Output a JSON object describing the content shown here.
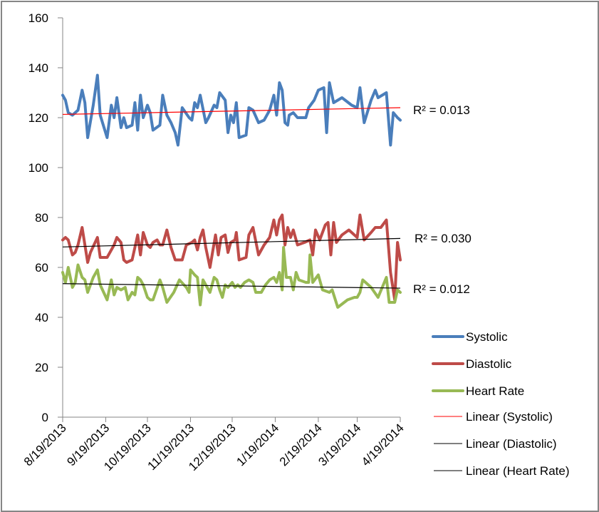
{
  "chart_data": {
    "type": "line",
    "title": "",
    "xlabel": "",
    "ylabel": "",
    "ylim": [
      0,
      160
    ],
    "yticks": [
      "0",
      "20",
      "40",
      "60",
      "80",
      "100",
      "120",
      "140",
      "160"
    ],
    "ytick_values": [
      0,
      20,
      40,
      60,
      80,
      100,
      120,
      140,
      160
    ],
    "xlim_days": [
      0,
      243
    ],
    "xticks": [
      "8/19/2013",
      "9/19/2013",
      "10/19/2013",
      "11/19/2013",
      "12/19/2013",
      "1/19/2014",
      "2/19/2014",
      "3/19/2014",
      "4/19/2014"
    ],
    "xtick_days": [
      0,
      31,
      61,
      92,
      122,
      153,
      184,
      212,
      243
    ],
    "x_unit": "days since 8/19/2013",
    "grid": false,
    "legend_position": "right",
    "series": [
      {
        "name": "Systolic",
        "color": "#4a7ebb",
        "points": [
          [
            0,
            129
          ],
          [
            2,
            127
          ],
          [
            4,
            122
          ],
          [
            7,
            121
          ],
          [
            11,
            123
          ],
          [
            14,
            131
          ],
          [
            16,
            126
          ],
          [
            18,
            112
          ],
          [
            22,
            125
          ],
          [
            25,
            137
          ],
          [
            27,
            121
          ],
          [
            32,
            112
          ],
          [
            35,
            125
          ],
          [
            37,
            120
          ],
          [
            39,
            128
          ],
          [
            42,
            116
          ],
          [
            44,
            120
          ],
          [
            46,
            116
          ],
          [
            50,
            117
          ],
          [
            52,
            126
          ],
          [
            54,
            115
          ],
          [
            56,
            129
          ],
          [
            58,
            120
          ],
          [
            61,
            125
          ],
          [
            63,
            122
          ],
          [
            65,
            115
          ],
          [
            70,
            117
          ],
          [
            72,
            129
          ],
          [
            75,
            121
          ],
          [
            78,
            118
          ],
          [
            81,
            114
          ],
          [
            83,
            109
          ],
          [
            86,
            124
          ],
          [
            91,
            120
          ],
          [
            93,
            119
          ],
          [
            95,
            126
          ],
          [
            97,
            124
          ],
          [
            99,
            129
          ],
          [
            103,
            118
          ],
          [
            105,
            120
          ],
          [
            109,
            125
          ],
          [
            111,
            124
          ],
          [
            113,
            130
          ],
          [
            117,
            127
          ],
          [
            119,
            114
          ],
          [
            121,
            121
          ],
          [
            123,
            118
          ],
          [
            125,
            126
          ],
          [
            127,
            112
          ],
          [
            132,
            113
          ],
          [
            134,
            124
          ],
          [
            137,
            123
          ],
          [
            141,
            118
          ],
          [
            145,
            119
          ],
          [
            149,
            123
          ],
          [
            152,
            129
          ],
          [
            154,
            121
          ],
          [
            156,
            134
          ],
          [
            158,
            131
          ],
          [
            160,
            118
          ],
          [
            162,
            117
          ],
          [
            163,
            121
          ],
          [
            166,
            122
          ],
          [
            169,
            120
          ],
          [
            175,
            120
          ],
          [
            177,
            124
          ],
          [
            181,
            127
          ],
          [
            184,
            131
          ],
          [
            188,
            132
          ],
          [
            190,
            114
          ],
          [
            192,
            134
          ],
          [
            195,
            126
          ],
          [
            201,
            128
          ],
          [
            208,
            125
          ],
          [
            212,
            124
          ],
          [
            214,
            132
          ],
          [
            217,
            118
          ],
          [
            222,
            127
          ],
          [
            225,
            131
          ],
          [
            227,
            128
          ],
          [
            233,
            130
          ],
          [
            236,
            109
          ],
          [
            238,
            122
          ],
          [
            241,
            120
          ],
          [
            243,
            119
          ]
        ]
      },
      {
        "name": "Diastolic",
        "color": "#be4b48",
        "points": [
          [
            0,
            71
          ],
          [
            2,
            72
          ],
          [
            4,
            71
          ],
          [
            7,
            65
          ],
          [
            9,
            66
          ],
          [
            11,
            69
          ],
          [
            14,
            76
          ],
          [
            18,
            62
          ],
          [
            20,
            66
          ],
          [
            25,
            72
          ],
          [
            27,
            64
          ],
          [
            32,
            64
          ],
          [
            35,
            67
          ],
          [
            37,
            69
          ],
          [
            39,
            72
          ],
          [
            42,
            70
          ],
          [
            44,
            63
          ],
          [
            46,
            62
          ],
          [
            50,
            63
          ],
          [
            52,
            68
          ],
          [
            54,
            73
          ],
          [
            56,
            65
          ],
          [
            58,
            74
          ],
          [
            61,
            69
          ],
          [
            63,
            68
          ],
          [
            65,
            70
          ],
          [
            68,
            71
          ],
          [
            70,
            69
          ],
          [
            72,
            69
          ],
          [
            75,
            75
          ],
          [
            78,
            68
          ],
          [
            81,
            63
          ],
          [
            86,
            63
          ],
          [
            89,
            69
          ],
          [
            93,
            70
          ],
          [
            95,
            71
          ],
          [
            97,
            67
          ],
          [
            99,
            72
          ],
          [
            101,
            75
          ],
          [
            103,
            68
          ],
          [
            106,
            60
          ],
          [
            110,
            73
          ],
          [
            112,
            65
          ],
          [
            114,
            72
          ],
          [
            117,
            73
          ],
          [
            119,
            66
          ],
          [
            121,
            70
          ],
          [
            124,
            71
          ],
          [
            125,
            74
          ],
          [
            127,
            63
          ],
          [
            132,
            64
          ],
          [
            134,
            73
          ],
          [
            137,
            76
          ],
          [
            141,
            65
          ],
          [
            145,
            69
          ],
          [
            149,
            72
          ],
          [
            152,
            79
          ],
          [
            154,
            73
          ],
          [
            156,
            79
          ],
          [
            158,
            81
          ],
          [
            160,
            69
          ],
          [
            162,
            76
          ],
          [
            164,
            72
          ],
          [
            166,
            75
          ],
          [
            169,
            69
          ],
          [
            174,
            70
          ],
          [
            178,
            71
          ],
          [
            180,
            65
          ],
          [
            182,
            75
          ],
          [
            185,
            71
          ],
          [
            189,
            77
          ],
          [
            191,
            78
          ],
          [
            193,
            65
          ],
          [
            195,
            78
          ],
          [
            197,
            70
          ],
          [
            201,
            73
          ],
          [
            206,
            75
          ],
          [
            210,
            73
          ],
          [
            212,
            72
          ],
          [
            214,
            81
          ],
          [
            217,
            71
          ],
          [
            222,
            74
          ],
          [
            225,
            76
          ],
          [
            229,
            76
          ],
          [
            233,
            79
          ],
          [
            236,
            58
          ],
          [
            239,
            47
          ],
          [
            241,
            70
          ],
          [
            243,
            63
          ]
        ]
      },
      {
        "name": "Heart Rate",
        "color": "#98b954",
        "points": [
          [
            0,
            58
          ],
          [
            2,
            54
          ],
          [
            4,
            60
          ],
          [
            7,
            52
          ],
          [
            9,
            54
          ],
          [
            11,
            61
          ],
          [
            14,
            56
          ],
          [
            16,
            55
          ],
          [
            18,
            50
          ],
          [
            22,
            56
          ],
          [
            25,
            59
          ],
          [
            27,
            53
          ],
          [
            32,
            47
          ],
          [
            35,
            55
          ],
          [
            37,
            49
          ],
          [
            39,
            52
          ],
          [
            42,
            51
          ],
          [
            45,
            52
          ],
          [
            47,
            47
          ],
          [
            50,
            50
          ],
          [
            52,
            49
          ],
          [
            54,
            56
          ],
          [
            56,
            55
          ],
          [
            58,
            53
          ],
          [
            61,
            48
          ],
          [
            63,
            47
          ],
          [
            65,
            47
          ],
          [
            70,
            55
          ],
          [
            72,
            52
          ],
          [
            75,
            46
          ],
          [
            80,
            50
          ],
          [
            84,
            55
          ],
          [
            89,
            52
          ],
          [
            91,
            50
          ],
          [
            92,
            59
          ],
          [
            95,
            57
          ],
          [
            97,
            56
          ],
          [
            99,
            45
          ],
          [
            101,
            55
          ],
          [
            103,
            53
          ],
          [
            106,
            50
          ],
          [
            109,
            56
          ],
          [
            111,
            55
          ],
          [
            113,
            51
          ],
          [
            115,
            48
          ],
          [
            117,
            53
          ],
          [
            119,
            52
          ],
          [
            122,
            54
          ],
          [
            124,
            52
          ],
          [
            126,
            53
          ],
          [
            128,
            52
          ],
          [
            131,
            54
          ],
          [
            134,
            55
          ],
          [
            137,
            54
          ],
          [
            139,
            50
          ],
          [
            143,
            50
          ],
          [
            146,
            53
          ],
          [
            149,
            55
          ],
          [
            152,
            56
          ],
          [
            154,
            54
          ],
          [
            156,
            58
          ],
          [
            158,
            51
          ],
          [
            159,
            68
          ],
          [
            161,
            56
          ],
          [
            164,
            56
          ],
          [
            166,
            51
          ],
          [
            168,
            58
          ],
          [
            170,
            55
          ],
          [
            175,
            54
          ],
          [
            177,
            54
          ],
          [
            178,
            65
          ],
          [
            180,
            54
          ],
          [
            184,
            57
          ],
          [
            187,
            51
          ],
          [
            192,
            50
          ],
          [
            194,
            51
          ],
          [
            198,
            44
          ],
          [
            205,
            47
          ],
          [
            210,
            48
          ],
          [
            212,
            48
          ],
          [
            214,
            50
          ],
          [
            216,
            55
          ],
          [
            222,
            52
          ],
          [
            227,
            48
          ],
          [
            233,
            56
          ],
          [
            235,
            46
          ],
          [
            239,
            46
          ],
          [
            241,
            51
          ],
          [
            243,
            50
          ]
        ]
      }
    ],
    "trendlines": [
      {
        "name": "Linear (Systolic)",
        "color": "#ff0000",
        "start": [
          0,
          121.3
        ],
        "end": [
          243,
          124.0
        ],
        "r2_label": "R² = 0.013"
      },
      {
        "name": "Linear (Diastolic)",
        "color": "#000000",
        "start": [
          0,
          68.2
        ],
        "end": [
          243,
          71.6
        ],
        "r2_label": "R² = 0.030"
      },
      {
        "name": "Linear (Heart Rate)",
        "color": "#000000",
        "start": [
          0,
          53.5
        ],
        "end": [
          243,
          51.7
        ],
        "r2_label": "R² = 0.012"
      }
    ],
    "legend": [
      {
        "label": "Systolic",
        "color": "#4a7ebb",
        "style": "thick"
      },
      {
        "label": "Diastolic",
        "color": "#be4b48",
        "style": "thick"
      },
      {
        "label": "Heart Rate",
        "color": "#98b954",
        "style": "thick"
      },
      {
        "label": "Linear (Systolic)",
        "color": "#ff0000",
        "style": "thin"
      },
      {
        "label": "Linear (Diastolic)",
        "color": "#000000",
        "style": "thin"
      },
      {
        "label": "Linear (Heart Rate)",
        "color": "#000000",
        "style": "thin"
      }
    ]
  }
}
